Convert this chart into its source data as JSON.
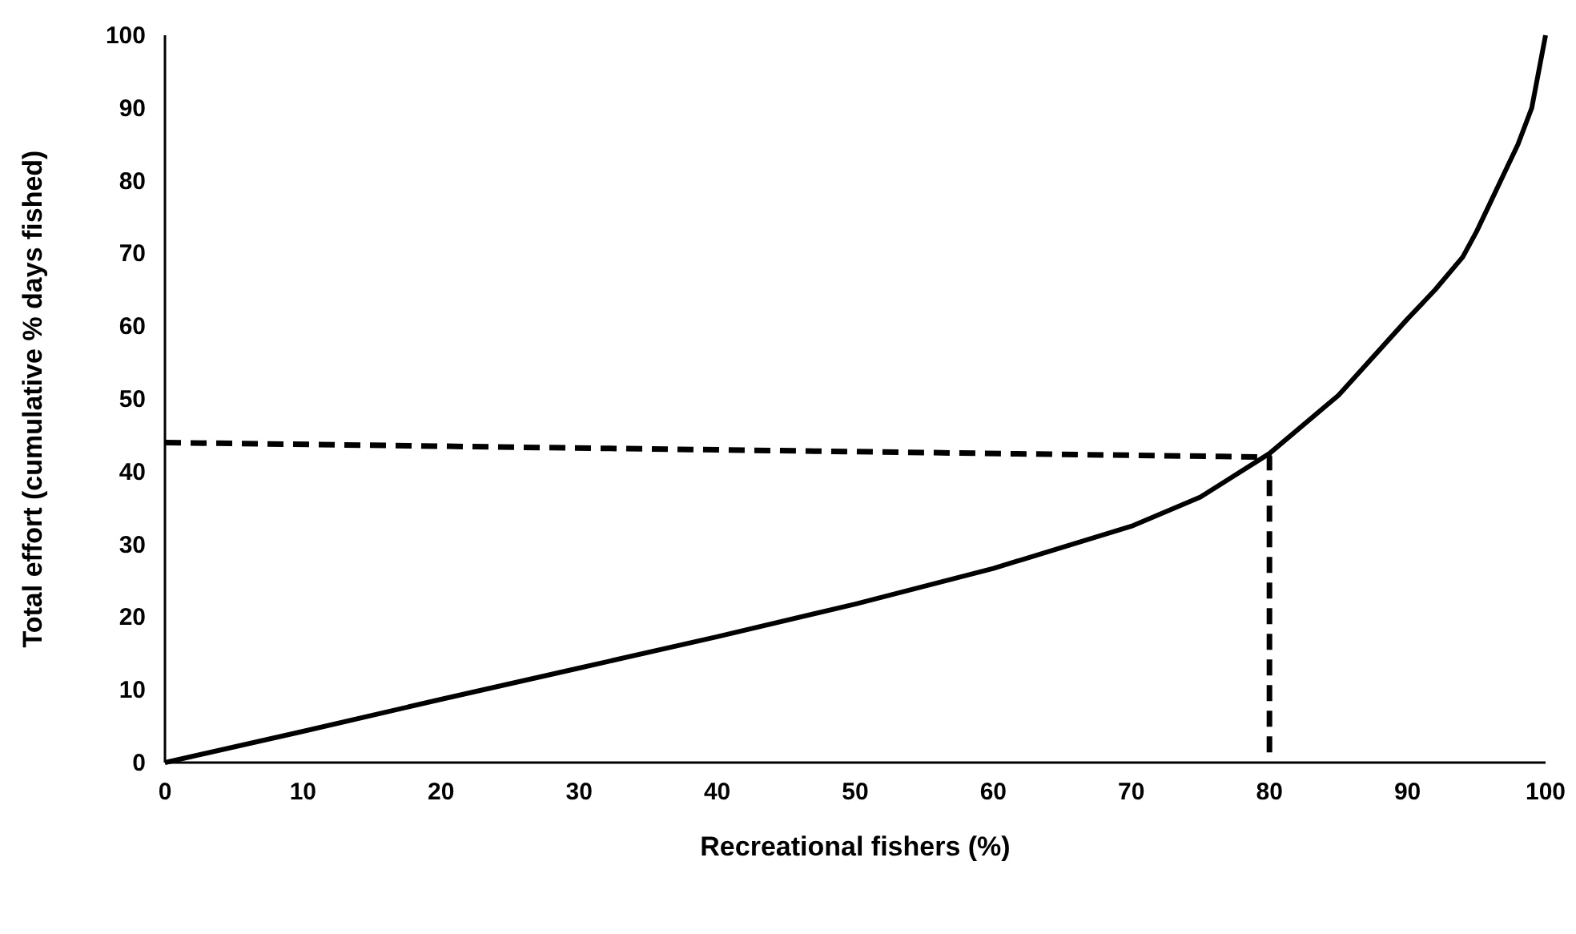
{
  "chart_data": {
    "type": "line",
    "xlabel": "Recreational fishers (%)",
    "ylabel": "Total effort (cumulative % days fished)",
    "xlim": [
      0,
      100
    ],
    "ylim": [
      0,
      100
    ],
    "xticks": [
      0,
      10,
      20,
      30,
      40,
      50,
      60,
      70,
      80,
      90,
      100
    ],
    "yticks": [
      0,
      10,
      20,
      30,
      40,
      50,
      60,
      70,
      80,
      90,
      100
    ],
    "marker": "none",
    "series": [
      {
        "color": "#000000",
        "line_style": "solid",
        "x": [
          0,
          10,
          20,
          30,
          40,
          50,
          60,
          70,
          75,
          80,
          85,
          90,
          92,
          94,
          95,
          96,
          97,
          98,
          99,
          100
        ],
        "values": [
          0,
          4.3,
          8.7,
          13,
          17.3,
          21.8,
          26.7,
          32.5,
          36.5,
          42.5,
          50.5,
          61,
          65,
          69.5,
          73,
          77,
          81,
          85,
          90,
          100
        ]
      },
      {
        "color": "#000000",
        "line_style": "dashed",
        "x": [
          0,
          80,
          80
        ],
        "values": [
          44,
          42,
          0
        ]
      }
    ]
  }
}
